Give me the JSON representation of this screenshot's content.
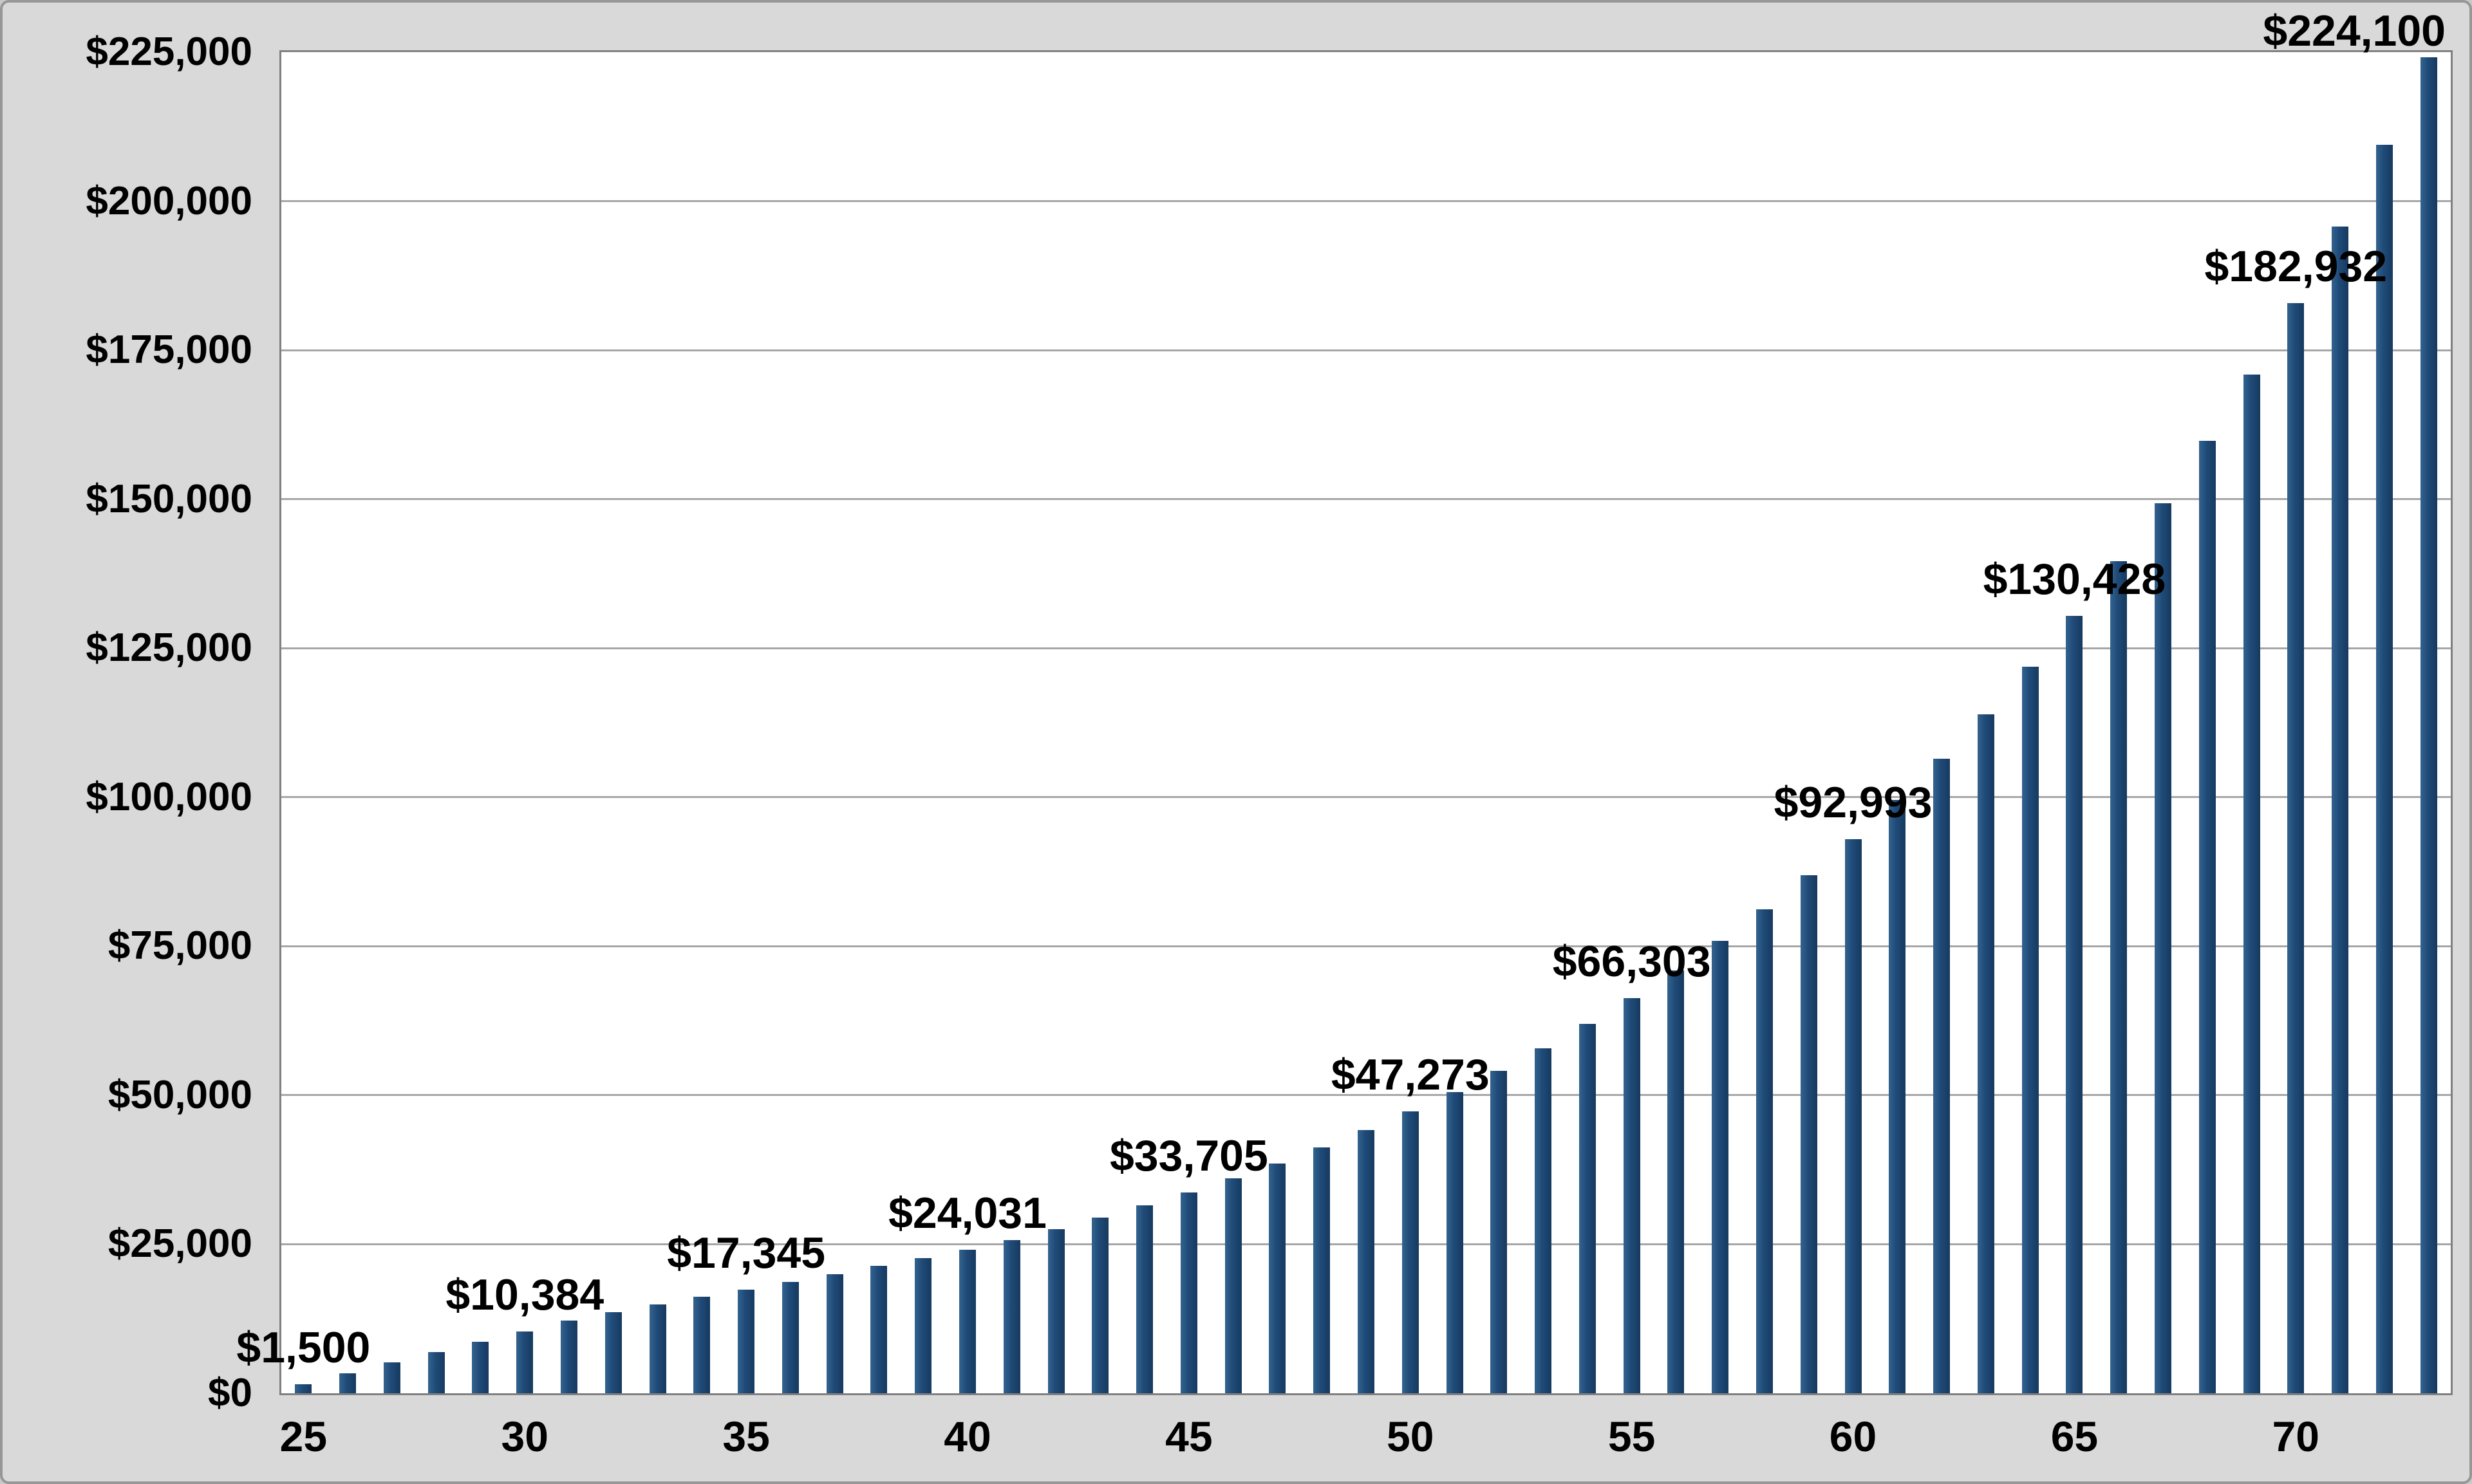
{
  "chart_data": {
    "type": "bar",
    "title": "",
    "xlabel": "",
    "ylabel": "",
    "grid": true,
    "legend": "none",
    "ylim": [
      0,
      225000
    ],
    "ytick_step": 25000,
    "yticklabels": [
      "$225,000",
      "$200,000",
      "$175,000",
      "$150,000",
      "$125,000",
      "$100,000",
      "$75,000",
      "$50,000",
      "$25,000",
      "$0"
    ],
    "xticks": [
      25,
      30,
      35,
      40,
      45,
      50,
      55,
      60,
      65,
      70
    ],
    "x": [
      25,
      26,
      27,
      28,
      29,
      30,
      31,
      32,
      33,
      34,
      35,
      36,
      37,
      38,
      39,
      40,
      41,
      42,
      43,
      44,
      45,
      46,
      47,
      48,
      49,
      50,
      51,
      52,
      53,
      54,
      55,
      56,
      57,
      58,
      59,
      60,
      61,
      62,
      63,
      64,
      65,
      66,
      67,
      68,
      69,
      70,
      71,
      72,
      73
    ],
    "values": [
      1500,
      3400,
      5200,
      6900,
      8600,
      10384,
      12200,
      13600,
      14900,
      16150,
      17345,
      18680,
      20020,
      21360,
      22695,
      24031,
      25713,
      27513,
      29439,
      31500,
      33705,
      36064,
      38589,
      41290,
      44180,
      47273,
      50582,
      54123,
      57912,
      61965,
      66303,
      70944,
      75910,
      81224,
      86910,
      92993,
      99503,
      106468,
      113921,
      121895,
      130428,
      139558,
      149327,
      159780,
      170964,
      182932,
      195737,
      209439,
      224100
    ],
    "labeled_points": [
      {
        "x": 25,
        "label": "$1,500",
        "align": "center"
      },
      {
        "x": 30,
        "label": "$10,384",
        "align": "center"
      },
      {
        "x": 35,
        "label": "$17,345",
        "align": "center"
      },
      {
        "x": 40,
        "label": "$24,031",
        "align": "center"
      },
      {
        "x": 45,
        "label": "$33,705",
        "align": "center"
      },
      {
        "x": 50,
        "label": "$47,273",
        "align": "center"
      },
      {
        "x": 55,
        "label": "$66,303",
        "align": "center"
      },
      {
        "x": 60,
        "label": "$92,993",
        "align": "center"
      },
      {
        "x": 65,
        "label": "$130,428",
        "align": "center"
      },
      {
        "x": 70,
        "label": "$182,932",
        "align": "center"
      },
      {
        "x": 73,
        "label": "$224,100",
        "align": "right"
      }
    ],
    "colors": {
      "bar": "#1f4a78",
      "bar_light": "#33638e",
      "bar_dark": "#173a5f",
      "background": "#d9d9d9",
      "plot_background": "#ffffff",
      "gridline": "#a6a6a6",
      "axis_border": "#808080",
      "text": "#000000"
    }
  }
}
